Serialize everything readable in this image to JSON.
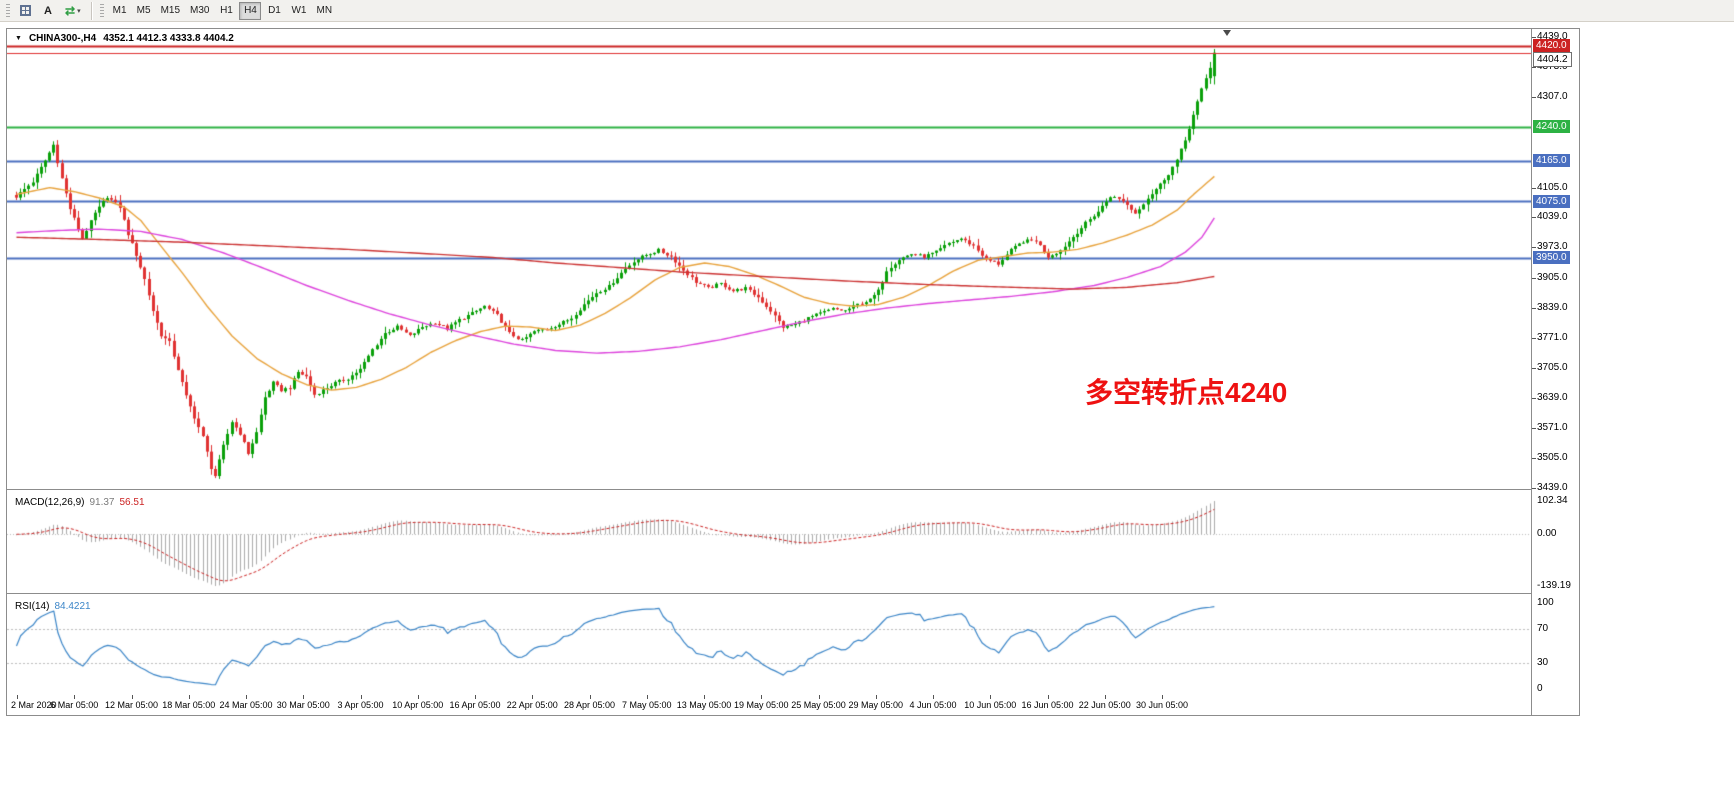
{
  "toolbar": {
    "buttons": [
      {
        "icon": "grid-icon"
      },
      {
        "label": "A"
      },
      {
        "icon": "cycle-arrows-icon",
        "glyph": "⇄",
        "dropdown": "▾"
      }
    ],
    "timeframes": [
      {
        "label": "M1",
        "active": false
      },
      {
        "label": "M5",
        "active": false
      },
      {
        "label": "M15",
        "active": false
      },
      {
        "label": "M30",
        "active": false
      },
      {
        "label": "H1",
        "active": false
      },
      {
        "label": "H4",
        "active": true
      },
      {
        "label": "D1",
        "active": false
      },
      {
        "label": "W1",
        "active": false
      },
      {
        "label": "MN",
        "active": false
      }
    ]
  },
  "chart": {
    "title_arrow": "▼",
    "symbol_tf": "CHINA300-,H4",
    "ohlc_text": "4352.1 4412.3 4333.8 4404.2",
    "annotation": {
      "text": "多空转折点4240",
      "color": "#ee1111"
    }
  },
  "main_panel": {
    "price_min": 3439.0,
    "price_max": 4439.0,
    "axis_labels": [
      4439.0,
      4373.0,
      4307.0,
      4105.0,
      4039.0,
      3973.0,
      3905.0,
      3839.0,
      3771.0,
      3705.0,
      3639.0,
      3571.0,
      3505.0,
      3439.0
    ],
    "hlines": [
      {
        "price": 4420.0,
        "color": "#cc2222",
        "width": 2,
        "badge": "4420.0",
        "badge_bg": "#cc2222",
        "badge_fg": "#ffffff"
      },
      {
        "price": 4240.0,
        "color": "#2db244",
        "width": 2,
        "badge": "4240.0",
        "badge_bg": "#2db244",
        "badge_fg": "#ffffff"
      },
      {
        "price": 4165.0,
        "color": "#4a6fc0",
        "width": 2,
        "badge": "4165.0",
        "badge_bg": "#4a6fc0",
        "badge_fg": "#ffffff"
      },
      {
        "price": 4075.0,
        "color": "#4a6fc0",
        "width": 2,
        "badge": "4075.0",
        "badge_bg": "#4a6fc0",
        "badge_fg": "#ffffff"
      },
      {
        "price": 3950.0,
        "color": "#4a6fc0",
        "width": 2,
        "badge": "3950.0",
        "badge_bg": "#4a6fc0",
        "badge_fg": "#ffffff"
      }
    ],
    "bid_line": {
      "price": 4404.2,
      "label": "4404.2",
      "color": "#e03030",
      "badge_bg": "#ffffff",
      "badge_fg": "#000000",
      "badge_border": "#707070"
    },
    "up_color": "#0aa00a",
    "down_color": "#e03232"
  },
  "chart_data": {
    "type": "candlestick",
    "symbol": "CHINA300-",
    "timeframe": "H4",
    "ylim": [
      3439.0,
      4439.0
    ],
    "num_candles": 290,
    "ohlc_current": {
      "open": 4352.1,
      "high": 4412.3,
      "low": 4333.8,
      "close": 4404.2
    },
    "close_waypoints": [
      [
        0,
        4085
      ],
      [
        4,
        4118
      ],
      [
        7,
        4165
      ],
      [
        9,
        4200
      ],
      [
        11,
        4125
      ],
      [
        13,
        4058
      ],
      [
        16,
        3992
      ],
      [
        19,
        4048
      ],
      [
        22,
        4085
      ],
      [
        25,
        4062
      ],
      [
        27,
        4002
      ],
      [
        29,
        3956
      ],
      [
        31,
        3902
      ],
      [
        33,
        3832
      ],
      [
        35,
        3778
      ],
      [
        37,
        3762
      ],
      [
        39,
        3702
      ],
      [
        41,
        3642
      ],
      [
        43,
        3596
      ],
      [
        45,
        3552
      ],
      [
        47,
        3484
      ],
      [
        48,
        3466
      ],
      [
        50,
        3532
      ],
      [
        52,
        3586
      ],
      [
        54,
        3560
      ],
      [
        56,
        3516
      ],
      [
        58,
        3562
      ],
      [
        60,
        3640
      ],
      [
        62,
        3672
      ],
      [
        64,
        3656
      ],
      [
        66,
        3662
      ],
      [
        68,
        3696
      ],
      [
        70,
        3686
      ],
      [
        72,
        3646
      ],
      [
        74,
        3656
      ],
      [
        77,
        3672
      ],
      [
        80,
        3682
      ],
      [
        83,
        3702
      ],
      [
        86,
        3746
      ],
      [
        89,
        3782
      ],
      [
        92,
        3796
      ],
      [
        95,
        3776
      ],
      [
        98,
        3796
      ],
      [
        101,
        3806
      ],
      [
        104,
        3792
      ],
      [
        107,
        3812
      ],
      [
        110,
        3826
      ],
      [
        113,
        3842
      ],
      [
        116,
        3822
      ],
      [
        119,
        3782
      ],
      [
        122,
        3766
      ],
      [
        125,
        3786
      ],
      [
        128,
        3792
      ],
      [
        131,
        3802
      ],
      [
        134,
        3816
      ],
      [
        137,
        3846
      ],
      [
        140,
        3872
      ],
      [
        143,
        3886
      ],
      [
        146,
        3916
      ],
      [
        149,
        3942
      ],
      [
        152,
        3956
      ],
      [
        155,
        3966
      ],
      [
        158,
        3952
      ],
      [
        161,
        3922
      ],
      [
        164,
        3896
      ],
      [
        167,
        3882
      ],
      [
        170,
        3892
      ],
      [
        173,
        3876
      ],
      [
        176,
        3882
      ],
      [
        179,
        3862
      ],
      [
        182,
        3832
      ],
      [
        185,
        3796
      ],
      [
        188,
        3802
      ],
      [
        191,
        3816
      ],
      [
        194,
        3826
      ],
      [
        197,
        3836
      ],
      [
        200,
        3832
      ],
      [
        203,
        3846
      ],
      [
        206,
        3856
      ],
      [
        208,
        3876
      ],
      [
        210,
        3922
      ],
      [
        213,
        3946
      ],
      [
        216,
        3958
      ],
      [
        219,
        3952
      ],
      [
        222,
        3962
      ],
      [
        225,
        3982
      ],
      [
        228,
        3992
      ],
      [
        231,
        3976
      ],
      [
        234,
        3946
      ],
      [
        237,
        3936
      ],
      [
        240,
        3966
      ],
      [
        243,
        3986
      ],
      [
        246,
        3988
      ],
      [
        249,
        3952
      ],
      [
        252,
        3966
      ],
      [
        255,
        3996
      ],
      [
        258,
        4026
      ],
      [
        261,
        4052
      ],
      [
        264,
        4086
      ],
      [
        267,
        4076
      ],
      [
        270,
        4048
      ],
      [
        273,
        4082
      ],
      [
        276,
        4112
      ],
      [
        278,
        4136
      ],
      [
        280,
        4166
      ],
      [
        282,
        4210
      ],
      [
        284,
        4266
      ],
      [
        286,
        4322
      ],
      [
        288,
        4372
      ],
      [
        289,
        4404.2
      ]
    ],
    "series": [
      {
        "name": "ma-fast",
        "color": "#e8a33d",
        "waypoints": [
          [
            0,
            4090
          ],
          [
            8,
            4105
          ],
          [
            14,
            4096
          ],
          [
            20,
            4082
          ],
          [
            26,
            4062
          ],
          [
            30,
            4032
          ],
          [
            36,
            3962
          ],
          [
            40,
            3916
          ],
          [
            46,
            3842
          ],
          [
            52,
            3776
          ],
          [
            58,
            3726
          ],
          [
            64,
            3692
          ],
          [
            70,
            3668
          ],
          [
            76,
            3656
          ],
          [
            82,
            3662
          ],
          [
            88,
            3680
          ],
          [
            94,
            3706
          ],
          [
            100,
            3740
          ],
          [
            106,
            3766
          ],
          [
            112,
            3786
          ],
          [
            118,
            3798
          ],
          [
            124,
            3796
          ],
          [
            130,
            3788
          ],
          [
            136,
            3800
          ],
          [
            142,
            3826
          ],
          [
            148,
            3860
          ],
          [
            154,
            3900
          ],
          [
            160,
            3928
          ],
          [
            166,
            3938
          ],
          [
            172,
            3930
          ],
          [
            178,
            3912
          ],
          [
            184,
            3888
          ],
          [
            190,
            3862
          ],
          [
            196,
            3848
          ],
          [
            202,
            3842
          ],
          [
            208,
            3846
          ],
          [
            214,
            3862
          ],
          [
            220,
            3888
          ],
          [
            226,
            3920
          ],
          [
            232,
            3944
          ],
          [
            238,
            3952
          ],
          [
            244,
            3960
          ],
          [
            250,
            3962
          ],
          [
            256,
            3968
          ],
          [
            262,
            3982
          ],
          [
            268,
            4000
          ],
          [
            274,
            4022
          ],
          [
            280,
            4055
          ],
          [
            284,
            4090
          ],
          [
            289,
            4130
          ]
        ]
      },
      {
        "name": "ma-medium",
        "color": "#dd44dd",
        "waypoints": [
          [
            0,
            4005
          ],
          [
            10,
            4010
          ],
          [
            20,
            4013
          ],
          [
            30,
            4008
          ],
          [
            40,
            3990
          ],
          [
            50,
            3960
          ],
          [
            60,
            3925
          ],
          [
            70,
            3888
          ],
          [
            80,
            3855
          ],
          [
            90,
            3825
          ],
          [
            100,
            3800
          ],
          [
            110,
            3778
          ],
          [
            120,
            3758
          ],
          [
            130,
            3744
          ],
          [
            140,
            3738
          ],
          [
            150,
            3742
          ],
          [
            160,
            3752
          ],
          [
            170,
            3768
          ],
          [
            180,
            3788
          ],
          [
            190,
            3808
          ],
          [
            200,
            3825
          ],
          [
            210,
            3838
          ],
          [
            220,
            3848
          ],
          [
            230,
            3856
          ],
          [
            240,
            3864
          ],
          [
            250,
            3874
          ],
          [
            260,
            3888
          ],
          [
            268,
            3906
          ],
          [
            276,
            3930
          ],
          [
            282,
            3962
          ],
          [
            286,
            3995
          ],
          [
            289,
            4038
          ]
        ]
      },
      {
        "name": "ma-slow",
        "color": "#cc3333",
        "waypoints": [
          [
            0,
            3995
          ],
          [
            20,
            3990
          ],
          [
            40,
            3984
          ],
          [
            60,
            3976
          ],
          [
            80,
            3968
          ],
          [
            100,
            3958
          ],
          [
            115,
            3950
          ],
          [
            130,
            3938
          ],
          [
            145,
            3928
          ],
          [
            160,
            3918
          ],
          [
            180,
            3908
          ],
          [
            200,
            3898
          ],
          [
            220,
            3890
          ],
          [
            240,
            3884
          ],
          [
            255,
            3880
          ],
          [
            268,
            3884
          ],
          [
            280,
            3894
          ],
          [
            289,
            3908
          ]
        ]
      }
    ],
    "x_labels": [
      "2 Mar 2020",
      "6 Mar 05:00",
      "12 Mar 05:00",
      "18 Mar 05:00",
      "24 Mar 05:00",
      "30 Mar 05:00",
      "3 Apr 05:00",
      "10 Apr 05:00",
      "16 Apr 05:00",
      "22 Apr 05:00",
      "28 Apr 05:00",
      "7 May 05:00",
      "13 May 05:00",
      "19 May 05:00",
      "25 May 05:00",
      "29 May 05:00",
      "4 Jun 05:00",
      "10 Jun 05:00",
      "16 Jun 05:00",
      "22 Jun 05:00",
      "30 Jun 05:00"
    ],
    "indicators": [
      {
        "name": "MACD",
        "params": "12,26,9",
        "main_value": 91.37,
        "signal_value": 56.51,
        "axis_labels": [
          102.34,
          0.0,
          -139.19
        ]
      },
      {
        "name": "RSI",
        "params": "14",
        "value": 84.4221,
        "levels": [
          70,
          30
        ]
      }
    ]
  },
  "macd_panel": {
    "name": "MACD(12,26,9)",
    "value_main": "91.37",
    "value_signal": "56.51",
    "max_label": "102.34",
    "zero_label": "0.00",
    "min_label": "-139.19",
    "bar_color": "#ababab",
    "signal_color": "#cc2222"
  },
  "rsi_panel": {
    "name": "RSI(14)",
    "value": "84.4221",
    "line_color": "#3c86c8",
    "axis_labels": [
      {
        "value": 100,
        "label": "100",
        "dashed": false
      },
      {
        "value": 70,
        "label": "70",
        "dashed": true
      },
      {
        "value": 30,
        "label": "30",
        "dashed": true
      },
      {
        "value": 0,
        "label": "0",
        "dashed": false
      }
    ]
  }
}
